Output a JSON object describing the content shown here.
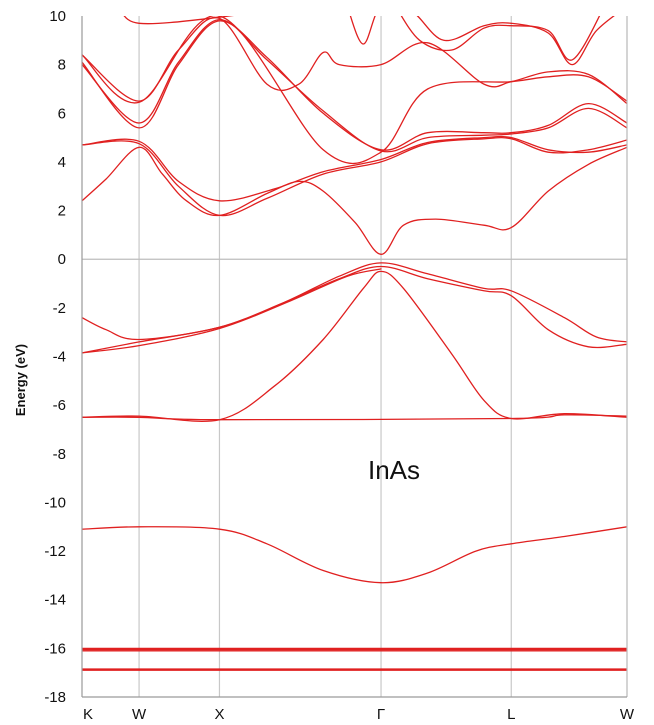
{
  "chart_data": {
    "type": "line",
    "title": "",
    "annotation": "InAs",
    "xlabel": "",
    "ylabel": "Energy (eV)",
    "ylim": [
      -18,
      10
    ],
    "yticks": [
      10,
      8,
      6,
      4,
      2,
      0,
      -2,
      -4,
      -6,
      -8,
      -10,
      -12,
      -14,
      -16,
      -18
    ],
    "xlim": [
      0,
      6.78
    ],
    "xticks": [
      {
        "label": "K",
        "x": 0
      },
      {
        "label": "W",
        "x": 0.71
      },
      {
        "label": "X",
        "x": 1.71
      },
      {
        "label": "Γ",
        "x": 3.72
      },
      {
        "label": "L",
        "x": 5.34
      },
      {
        "label": "W",
        "x": 6.78
      }
    ],
    "grid": "vertical lines at k-points, horizontal line at 0",
    "line_color": "#e02020",
    "series": [
      {
        "values": [
          [
            0,
            -16.9
          ],
          [
            6.78,
            -16.9
          ]
        ]
      },
      {
        "values": [
          [
            0,
            -16.85
          ],
          [
            6.78,
            -16.85
          ]
        ]
      },
      {
        "values": [
          [
            0,
            -16.1
          ],
          [
            6.78,
            -16.1
          ]
        ]
      },
      {
        "values": [
          [
            0,
            -16.05
          ],
          [
            6.78,
            -16.05
          ]
        ]
      },
      {
        "values": [
          [
            0,
            -16.0
          ],
          [
            6.78,
            -16.0
          ]
        ]
      },
      {
        "values": [
          [
            0,
            -11.1
          ],
          [
            0.71,
            -11.0
          ],
          [
            1.71,
            -11.1
          ],
          [
            2.3,
            -11.7
          ],
          [
            3.0,
            -12.8
          ],
          [
            3.72,
            -13.3
          ],
          [
            4.3,
            -12.9
          ],
          [
            4.9,
            -12.0
          ],
          [
            5.34,
            -11.7
          ],
          [
            6.0,
            -11.4
          ],
          [
            6.78,
            -11.0
          ]
        ]
      },
      {
        "values": [
          [
            0,
            -6.5
          ],
          [
            0.71,
            -6.45
          ],
          [
            1.71,
            -6.6
          ],
          [
            2.4,
            -5.2
          ],
          [
            3.0,
            -3.3
          ],
          [
            3.5,
            -1.2
          ],
          [
            3.72,
            -0.5
          ],
          [
            4.0,
            -1.2
          ],
          [
            4.6,
            -3.9
          ],
          [
            5.0,
            -5.8
          ],
          [
            5.34,
            -6.55
          ],
          [
            6.0,
            -6.35
          ],
          [
            6.78,
            -6.5
          ]
        ]
      },
      {
        "values": [
          [
            0,
            -6.5
          ],
          [
            0.71,
            -6.5
          ],
          [
            1.71,
            -6.6
          ],
          [
            5.34,
            -6.55
          ],
          [
            6.0,
            -6.4
          ],
          [
            6.78,
            -6.45
          ]
        ]
      },
      {
        "values": [
          [
            0,
            -2.4
          ],
          [
            0.3,
            -2.9
          ],
          [
            0.71,
            -3.3
          ],
          [
            1.71,
            -2.8
          ],
          [
            2.5,
            -1.8
          ],
          [
            3.2,
            -0.7
          ],
          [
            3.72,
            -0.15
          ],
          [
            4.3,
            -0.6
          ],
          [
            5.0,
            -1.2
          ],
          [
            5.34,
            -1.3
          ],
          [
            6.0,
            -2.4
          ],
          [
            6.4,
            -3.2
          ],
          [
            6.78,
            -3.4
          ]
        ]
      },
      {
        "values": [
          [
            0,
            -3.85
          ],
          [
            0.71,
            -3.4
          ],
          [
            1.71,
            -2.8
          ],
          [
            2.5,
            -1.8
          ],
          [
            3.2,
            -0.8
          ],
          [
            3.72,
            -0.3
          ],
          [
            4.3,
            -0.8
          ],
          [
            5.0,
            -1.3
          ],
          [
            5.34,
            -1.5
          ],
          [
            5.8,
            -2.9
          ],
          [
            6.3,
            -3.6
          ],
          [
            6.78,
            -3.5
          ]
        ]
      },
      {
        "values": [
          [
            0,
            -3.85
          ],
          [
            0.71,
            -3.55
          ],
          [
            1.71,
            -2.85
          ],
          [
            2.6,
            -1.7
          ],
          [
            3.3,
            -0.7
          ],
          [
            3.72,
            -0.4
          ]
        ]
      },
      {
        "values": [
          [
            0,
            2.4
          ],
          [
            0.3,
            3.3
          ],
          [
            0.71,
            4.6
          ],
          [
            1.0,
            3.5
          ],
          [
            1.3,
            2.4
          ],
          [
            1.71,
            1.8
          ],
          [
            2.3,
            2.7
          ],
          [
            2.7,
            3.2
          ],
          [
            3.0,
            2.8
          ],
          [
            3.4,
            1.5
          ],
          [
            3.72,
            0.2
          ],
          [
            4.0,
            1.4
          ],
          [
            4.4,
            1.65
          ],
          [
            5.0,
            1.4
          ],
          [
            5.34,
            1.3
          ],
          [
            5.8,
            2.8
          ],
          [
            6.3,
            3.9
          ],
          [
            6.78,
            4.6
          ]
        ]
      },
      {
        "values": [
          [
            0,
            4.7
          ],
          [
            0.71,
            4.85
          ],
          [
            1.2,
            3.2
          ],
          [
            1.71,
            2.4
          ],
          [
            2.4,
            2.9
          ],
          [
            3.0,
            3.6
          ],
          [
            3.72,
            4.1
          ],
          [
            4.3,
            4.8
          ],
          [
            5.0,
            5.0
          ],
          [
            5.34,
            5.0
          ],
          [
            5.8,
            4.5
          ],
          [
            6.3,
            4.4
          ],
          [
            6.78,
            4.7
          ]
        ]
      },
      {
        "values": [
          [
            0,
            4.7
          ],
          [
            0.71,
            4.75
          ],
          [
            1.2,
            3.0
          ],
          [
            1.71,
            1.8
          ],
          [
            2.3,
            2.5
          ],
          [
            3.0,
            3.5
          ],
          [
            3.72,
            4.0
          ],
          [
            4.3,
            4.75
          ],
          [
            5.0,
            4.95
          ],
          [
            5.34,
            4.95
          ],
          [
            5.8,
            4.4
          ],
          [
            6.3,
            4.5
          ],
          [
            6.78,
            4.9
          ]
        ]
      },
      {
        "values": [
          [
            0,
            8.1
          ],
          [
            0.71,
            5.4
          ],
          [
            1.2,
            8.0
          ],
          [
            1.71,
            9.8
          ],
          [
            2.3,
            8.3
          ],
          [
            3.0,
            6.0
          ],
          [
            3.72,
            4.5
          ],
          [
            4.3,
            5.2
          ],
          [
            5.0,
            5.2
          ],
          [
            5.34,
            5.2
          ],
          [
            5.8,
            5.5
          ],
          [
            6.3,
            6.4
          ],
          [
            6.78,
            5.6
          ]
        ]
      },
      {
        "values": [
          [
            0,
            8.0
          ],
          [
            0.71,
            5.6
          ],
          [
            1.2,
            8.1
          ],
          [
            1.71,
            9.85
          ],
          [
            2.3,
            8.2
          ],
          [
            3.0,
            6.1
          ],
          [
            3.72,
            4.45
          ],
          [
            4.3,
            5.0
          ],
          [
            5.0,
            5.1
          ],
          [
            5.34,
            5.15
          ],
          [
            5.8,
            5.4
          ],
          [
            6.3,
            6.2
          ],
          [
            6.78,
            5.4
          ]
        ]
      },
      {
        "values": [
          [
            0,
            8.4
          ],
          [
            0.71,
            6.5
          ],
          [
            1.2,
            8.6
          ],
          [
            1.71,
            9.9
          ],
          [
            2.3,
            7.2
          ],
          [
            2.7,
            7.2
          ],
          [
            3.0,
            8.5
          ],
          [
            3.2,
            8.0
          ],
          [
            3.72,
            8.0
          ],
          [
            4.3,
            8.9
          ],
          [
            5.0,
            7.2
          ],
          [
            5.34,
            7.3
          ],
          [
            5.8,
            7.7
          ],
          [
            6.3,
            7.6
          ],
          [
            6.78,
            6.4
          ]
        ]
      },
      {
        "values": [
          [
            0,
            8.4
          ],
          [
            0.71,
            6.45
          ],
          [
            1.71,
            10.0
          ],
          [
            3.0,
            4.5
          ],
          [
            3.72,
            4.4
          ],
          [
            4.3,
            7.0
          ],
          [
            5.34,
            7.3
          ],
          [
            5.8,
            7.5
          ],
          [
            6.3,
            7.5
          ],
          [
            6.78,
            6.5
          ]
        ]
      },
      {
        "values": [
          [
            0,
            10.4
          ],
          [
            0.4,
            10.4
          ],
          [
            0.71,
            9.7
          ],
          [
            1.71,
            9.95
          ],
          [
            2.6,
            10.4
          ]
        ]
      },
      {
        "values": [
          [
            3.3,
            10.4
          ],
          [
            3.5,
            8.85
          ],
          [
            3.72,
            10.4
          ],
          [
            4.1,
            10.2
          ],
          [
            4.5,
            9.0
          ],
          [
            5.0,
            9.6
          ],
          [
            5.34,
            9.7
          ],
          [
            5.8,
            9.3
          ],
          [
            6.1,
            8.0
          ],
          [
            6.4,
            9.4
          ],
          [
            6.78,
            10.4
          ]
        ]
      },
      {
        "values": [
          [
            3.9,
            10.4
          ],
          [
            4.2,
            9.0
          ],
          [
            4.6,
            8.6
          ],
          [
            5.0,
            9.5
          ],
          [
            5.34,
            9.6
          ],
          [
            5.8,
            9.4
          ],
          [
            6.1,
            8.2
          ],
          [
            6.5,
            10.4
          ]
        ]
      }
    ]
  }
}
